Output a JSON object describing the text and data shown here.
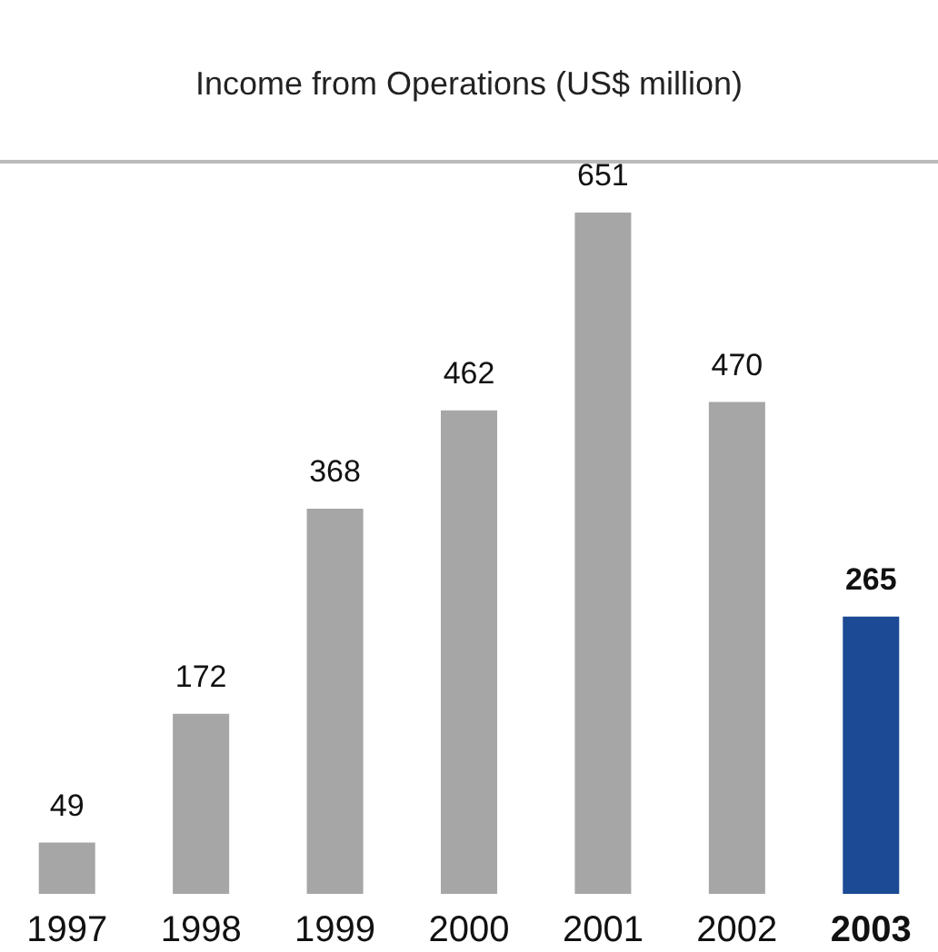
{
  "chart_data": {
    "type": "bar",
    "title": "Income from Operations (US$ million)",
    "categories": [
      "1997",
      "1998",
      "1999",
      "2000",
      "2001",
      "2002",
      "2003"
    ],
    "values": [
      49,
      172,
      368,
      462,
      651,
      470,
      265
    ],
    "colors": [
      "#a6a6a6",
      "#a6a6a6",
      "#a6a6a6",
      "#a6a6a6",
      "#a6a6a6",
      "#a6a6a6",
      "#1c4a94"
    ],
    "data_labels": true
  }
}
